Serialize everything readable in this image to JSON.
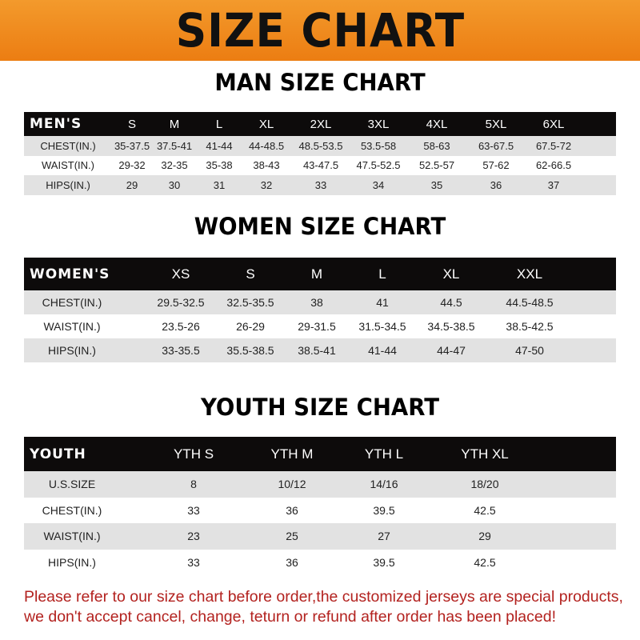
{
  "title": "SIZE CHART",
  "men": {
    "title": "MAN SIZE CHART",
    "header": [
      "MEN'S",
      "S",
      "M",
      "L",
      "XL",
      "2XL",
      "3XL",
      "4XL",
      "5XL",
      "6XL"
    ],
    "rows": [
      [
        "CHEST(IN.)",
        "35-37.5",
        "37.5-41",
        "41-44",
        "44-48.5",
        "48.5-53.5",
        "53.5-58",
        "58-63",
        "63-67.5",
        "67.5-72"
      ],
      [
        "WAIST(IN.)",
        "29-32",
        "32-35",
        "35-38",
        "38-43",
        "43-47.5",
        "47.5-52.5",
        "52.5-57",
        "57-62",
        "62-66.5"
      ],
      [
        "HIPS(IN.)",
        "29",
        "30",
        "31",
        "32",
        "33",
        "34",
        "35",
        "36",
        "37"
      ]
    ]
  },
  "women": {
    "title": "WOMEN SIZE CHART",
    "header": [
      "WOMEN'S",
      "XS",
      "S",
      "M",
      "L",
      "XL",
      "XXL"
    ],
    "rows": [
      [
        "CHEST(IN.)",
        "29.5-32.5",
        "32.5-35.5",
        "38",
        "41",
        "44.5",
        "44.5-48.5"
      ],
      [
        "WAIST(IN.)",
        "23.5-26",
        "26-29",
        "29-31.5",
        "31.5-34.5",
        "34.5-38.5",
        "38.5-42.5"
      ],
      [
        "HIPS(IN.)",
        "33-35.5",
        "35.5-38.5",
        "38.5-41",
        "41-44",
        "44-47",
        "47-50"
      ]
    ]
  },
  "youth": {
    "title": "YOUTH SIZE CHART",
    "header": [
      "YOUTH",
      "YTH S",
      "YTH M",
      "YTH L",
      "YTH XL"
    ],
    "rows": [
      [
        "U.S.SIZE",
        "8",
        "10/12",
        "14/16",
        "18/20"
      ],
      [
        "CHEST(IN.)",
        "33",
        "36",
        "39.5",
        "42.5"
      ],
      [
        "WAIST(IN.)",
        "23",
        "25",
        "27",
        "29"
      ],
      [
        "HIPS(IN.)",
        "33",
        "36",
        "39.5",
        "42.5"
      ]
    ]
  },
  "notice_line1": "Please refer to our size chart before order,the customized jerseys are special products,",
  "notice_line2": "we don't accept cancel, change, teturn or refund after order has been placed!",
  "colors": {
    "banner": "#ef8a1e",
    "header_row": "#0d0b0b",
    "stripe": "#e2e2e2",
    "notice": "#b3221f"
  }
}
